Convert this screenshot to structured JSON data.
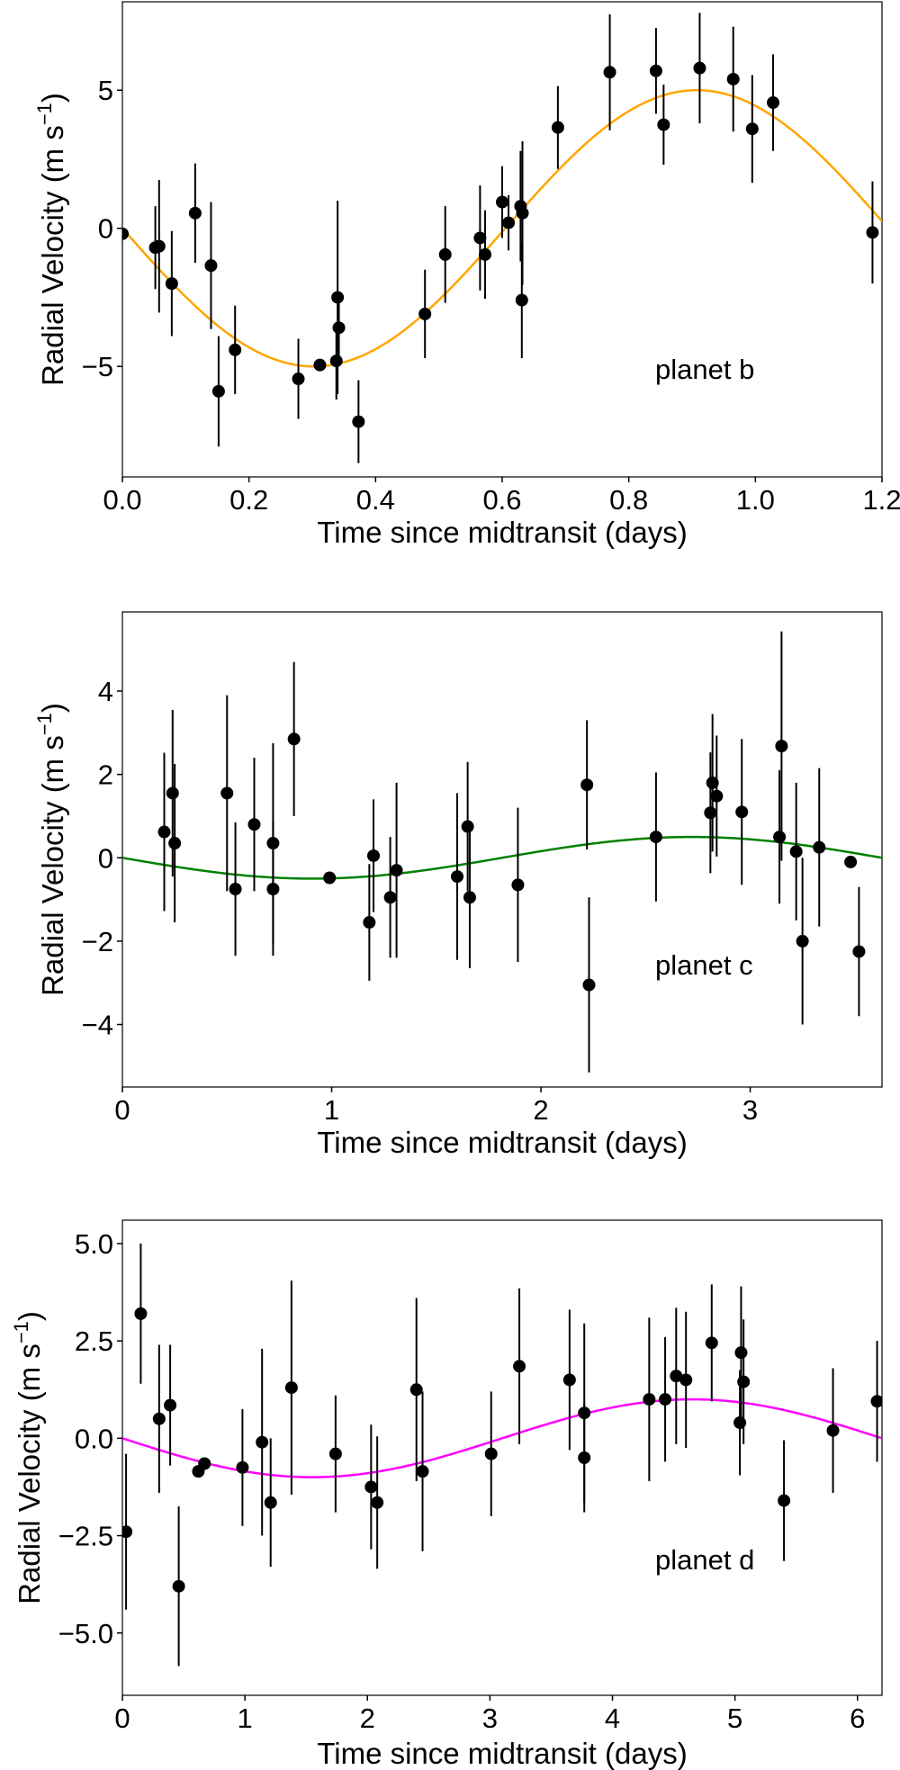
{
  "chart_data": [
    {
      "type": "scatter",
      "title": "",
      "annotation": "planet b",
      "xlabel": "Time since midtransit (days)",
      "ylabel_base": "Radial Velocity (m s",
      "ylabel_sup": "−1",
      "ylabel_end": ")",
      "xlim": [
        0.0,
        1.2
      ],
      "ylim": [
        -9.0,
        8.2
      ],
      "xticks": [
        0.0,
        0.2,
        0.4,
        0.6,
        0.8,
        1.0,
        1.2
      ],
      "xtick_labels": [
        "0.0",
        "0.2",
        "0.4",
        "0.6",
        "0.8",
        "1.0",
        "1.2"
      ],
      "yticks": [
        -5,
        0,
        5
      ],
      "ytick_labels": [
        "−5",
        "0",
        "5"
      ],
      "model": {
        "type": "sine",
        "amplitude": 5.0,
        "period": 1.21,
        "color": "#ffa500"
      },
      "points": [
        {
          "x": 0.0,
          "y": -0.2,
          "err": 0
        },
        {
          "x": 0.052,
          "y": -0.7,
          "err": 1.5
        },
        {
          "x": 0.058,
          "y": -0.65,
          "err": 2.4
        },
        {
          "x": 0.078,
          "y": -2.0,
          "err": 1.9
        },
        {
          "x": 0.115,
          "y": 0.55,
          "err": 1.8
        },
        {
          "x": 0.14,
          "y": -1.35,
          "err": 2.3
        },
        {
          "x": 0.152,
          "y": -5.9,
          "err": 2.0
        },
        {
          "x": 0.178,
          "y": -4.4,
          "err": 1.6
        },
        {
          "x": 0.278,
          "y": -5.45,
          "err": 1.45
        },
        {
          "x": 0.312,
          "y": -4.95,
          "err": 0
        },
        {
          "x": 0.338,
          "y": -4.8,
          "err": 1.4
        },
        {
          "x": 0.34,
          "y": -2.5,
          "err": 3.5
        },
        {
          "x": 0.342,
          "y": -3.6,
          "err": 1.3
        },
        {
          "x": 0.373,
          "y": -7.0,
          "err": 1.5
        },
        {
          "x": 0.478,
          "y": -3.1,
          "err": 1.6
        },
        {
          "x": 0.51,
          "y": -0.95,
          "err": 1.75
        },
        {
          "x": 0.565,
          "y": -0.35,
          "err": 1.9
        },
        {
          "x": 0.573,
          "y": -0.95,
          "err": 1.6
        },
        {
          "x": 0.6,
          "y": 0.95,
          "err": 1.3
        },
        {
          "x": 0.61,
          "y": 0.2,
          "err": 1.0
        },
        {
          "x": 0.629,
          "y": 0.8,
          "err": 2.0
        },
        {
          "x": 0.631,
          "y": -2.6,
          "err": 2.1
        },
        {
          "x": 0.632,
          "y": 0.55,
          "err": 2.6
        },
        {
          "x": 0.688,
          "y": 3.65,
          "err": 1.5
        },
        {
          "x": 0.77,
          "y": 5.65,
          "err": 2.1
        },
        {
          "x": 0.843,
          "y": 5.7,
          "err": 1.55
        },
        {
          "x": 0.855,
          "y": 3.75,
          "err": 1.45
        },
        {
          "x": 0.912,
          "y": 5.8,
          "err": 2.0
        },
        {
          "x": 0.965,
          "y": 5.4,
          "err": 1.9
        },
        {
          "x": 0.995,
          "y": 3.6,
          "err": 1.95
        },
        {
          "x": 1.028,
          "y": 4.55,
          "err": 1.75
        },
        {
          "x": 1.185,
          "y": -0.15,
          "err": 1.85
        }
      ]
    },
    {
      "type": "scatter",
      "title": "",
      "annotation": "planet c",
      "xlabel": "Time since midtransit (days)",
      "ylabel_base": "Radial Velocity (m s",
      "ylabel_sup": "−1",
      "ylabel_end": ")",
      "xlim": [
        0,
        3.63
      ],
      "ylim": [
        -5.5,
        5.9
      ],
      "xticks": [
        0,
        1,
        2,
        3
      ],
      "xtick_labels": [
        "0",
        "1",
        "2",
        "3"
      ],
      "yticks": [
        -4,
        -2,
        0,
        2,
        4
      ],
      "ytick_labels": [
        "−4",
        "−2",
        "0",
        "2",
        "4"
      ],
      "model": {
        "type": "sine",
        "amplitude": 0.5,
        "period": 3.63,
        "color": "#008000"
      },
      "points": [
        {
          "x": 0.2,
          "y": 0.62,
          "err": 1.9
        },
        {
          "x": 0.24,
          "y": 1.55,
          "err": 2.0
        },
        {
          "x": 0.25,
          "y": 0.35,
          "err": 1.9
        },
        {
          "x": 0.5,
          "y": 1.55,
          "err": 2.35
        },
        {
          "x": 0.54,
          "y": -0.75,
          "err": 1.6
        },
        {
          "x": 0.63,
          "y": 0.8,
          "err": 1.6
        },
        {
          "x": 0.72,
          "y": 0.35,
          "err": 2.4
        },
        {
          "x": 0.72,
          "y": -0.75,
          "err": 1.6
        },
        {
          "x": 0.82,
          "y": 2.85,
          "err": 1.85
        },
        {
          "x": 0.99,
          "y": -0.48,
          "err": 0
        },
        {
          "x": 1.18,
          "y": -1.55,
          "err": 1.4
        },
        {
          "x": 1.2,
          "y": 0.05,
          "err": 1.35
        },
        {
          "x": 1.28,
          "y": -0.95,
          "err": 1.45
        },
        {
          "x": 1.31,
          "y": -0.3,
          "err": 2.1
        },
        {
          "x": 1.6,
          "y": -0.45,
          "err": 2.0
        },
        {
          "x": 1.65,
          "y": 0.75,
          "err": 1.55
        },
        {
          "x": 1.66,
          "y": -0.95,
          "err": 1.7
        },
        {
          "x": 1.89,
          "y": -0.65,
          "err": 1.85
        },
        {
          "x": 2.22,
          "y": 1.75,
          "err": 1.55
        },
        {
          "x": 2.23,
          "y": -3.05,
          "err": 2.1
        },
        {
          "x": 2.55,
          "y": 0.5,
          "err": 1.55
        },
        {
          "x": 2.81,
          "y": 1.08,
          "err": 1.45
        },
        {
          "x": 2.82,
          "y": 1.8,
          "err": 1.65
        },
        {
          "x": 2.84,
          "y": 1.48,
          "err": 1.45
        },
        {
          "x": 2.96,
          "y": 1.1,
          "err": 1.75
        },
        {
          "x": 3.14,
          "y": 0.5,
          "err": 1.6
        },
        {
          "x": 3.15,
          "y": 2.68,
          "err": 2.75
        },
        {
          "x": 3.22,
          "y": 0.15,
          "err": 1.65
        },
        {
          "x": 3.25,
          "y": -2.0,
          "err": 2.0
        },
        {
          "x": 3.33,
          "y": 0.25,
          "err": 1.9
        },
        {
          "x": 3.48,
          "y": -0.1,
          "err": 0
        },
        {
          "x": 3.52,
          "y": -2.25,
          "err": 1.55
        }
      ]
    },
    {
      "type": "scatter",
      "title": "",
      "annotation": "planet d",
      "xlabel": "Time since midtransit (days)",
      "ylabel_base": "Radial Velocity (m s",
      "ylabel_sup": "−1",
      "ylabel_end": ")",
      "xlim": [
        0,
        6.2
      ],
      "ylim": [
        -6.6,
        5.6
      ],
      "xticks": [
        0,
        1,
        2,
        3,
        4,
        5,
        6
      ],
      "xtick_labels": [
        "0",
        "1",
        "2",
        "3",
        "4",
        "5",
        "6"
      ],
      "yticks": [
        -5.0,
        -2.5,
        0.0,
        2.5,
        5.0
      ],
      "ytick_labels": [
        "−5.0",
        "−2.5",
        "0.0",
        "2.5",
        "5.0"
      ],
      "model": {
        "type": "sine",
        "amplitude": 1.0,
        "period": 6.2,
        "color": "#ff00ff"
      },
      "points": [
        {
          "x": 0.03,
          "y": -2.4,
          "err": 2.0
        },
        {
          "x": 0.15,
          "y": 3.2,
          "err": 1.8
        },
        {
          "x": 0.3,
          "y": 0.5,
          "err": 1.9
        },
        {
          "x": 0.39,
          "y": 0.85,
          "err": 1.55
        },
        {
          "x": 0.46,
          "y": -3.8,
          "err": 2.05
        },
        {
          "x": 0.62,
          "y": -0.85,
          "err": 0
        },
        {
          "x": 0.67,
          "y": -0.65,
          "err": 0
        },
        {
          "x": 0.98,
          "y": -0.75,
          "err": 1.5
        },
        {
          "x": 1.14,
          "y": -0.1,
          "err": 2.4
        },
        {
          "x": 1.21,
          "y": -1.65,
          "err": 1.65
        },
        {
          "x": 1.38,
          "y": 1.3,
          "err": 2.75
        },
        {
          "x": 1.74,
          "y": -0.4,
          "err": 1.5
        },
        {
          "x": 2.03,
          "y": -1.25,
          "err": 1.6
        },
        {
          "x": 2.08,
          "y": -1.65,
          "err": 1.7
        },
        {
          "x": 2.4,
          "y": 1.25,
          "err": 2.35
        },
        {
          "x": 2.45,
          "y": -0.85,
          "err": 2.05
        },
        {
          "x": 3.01,
          "y": -0.4,
          "err": 1.6
        },
        {
          "x": 3.24,
          "y": 1.85,
          "err": 2.0
        },
        {
          "x": 3.65,
          "y": 1.5,
          "err": 1.8
        },
        {
          "x": 3.77,
          "y": 0.65,
          "err": 2.3
        },
        {
          "x": 3.77,
          "y": -0.5,
          "err": 1.4
        },
        {
          "x": 4.3,
          "y": 1.0,
          "err": 2.1
        },
        {
          "x": 4.43,
          "y": 1.0,
          "err": 1.6
        },
        {
          "x": 4.52,
          "y": 1.6,
          "err": 1.75
        },
        {
          "x": 4.6,
          "y": 1.5,
          "err": 1.75
        },
        {
          "x": 4.81,
          "y": 2.45,
          "err": 1.5
        },
        {
          "x": 5.04,
          "y": 0.4,
          "err": 1.35
        },
        {
          "x": 5.05,
          "y": 2.2,
          "err": 1.7
        },
        {
          "x": 5.07,
          "y": 1.45,
          "err": 1.6
        },
        {
          "x": 5.4,
          "y": -1.6,
          "err": 1.55
        },
        {
          "x": 5.8,
          "y": 0.2,
          "err": 1.6
        },
        {
          "x": 6.16,
          "y": 0.95,
          "err": 1.55
        }
      ]
    }
  ]
}
